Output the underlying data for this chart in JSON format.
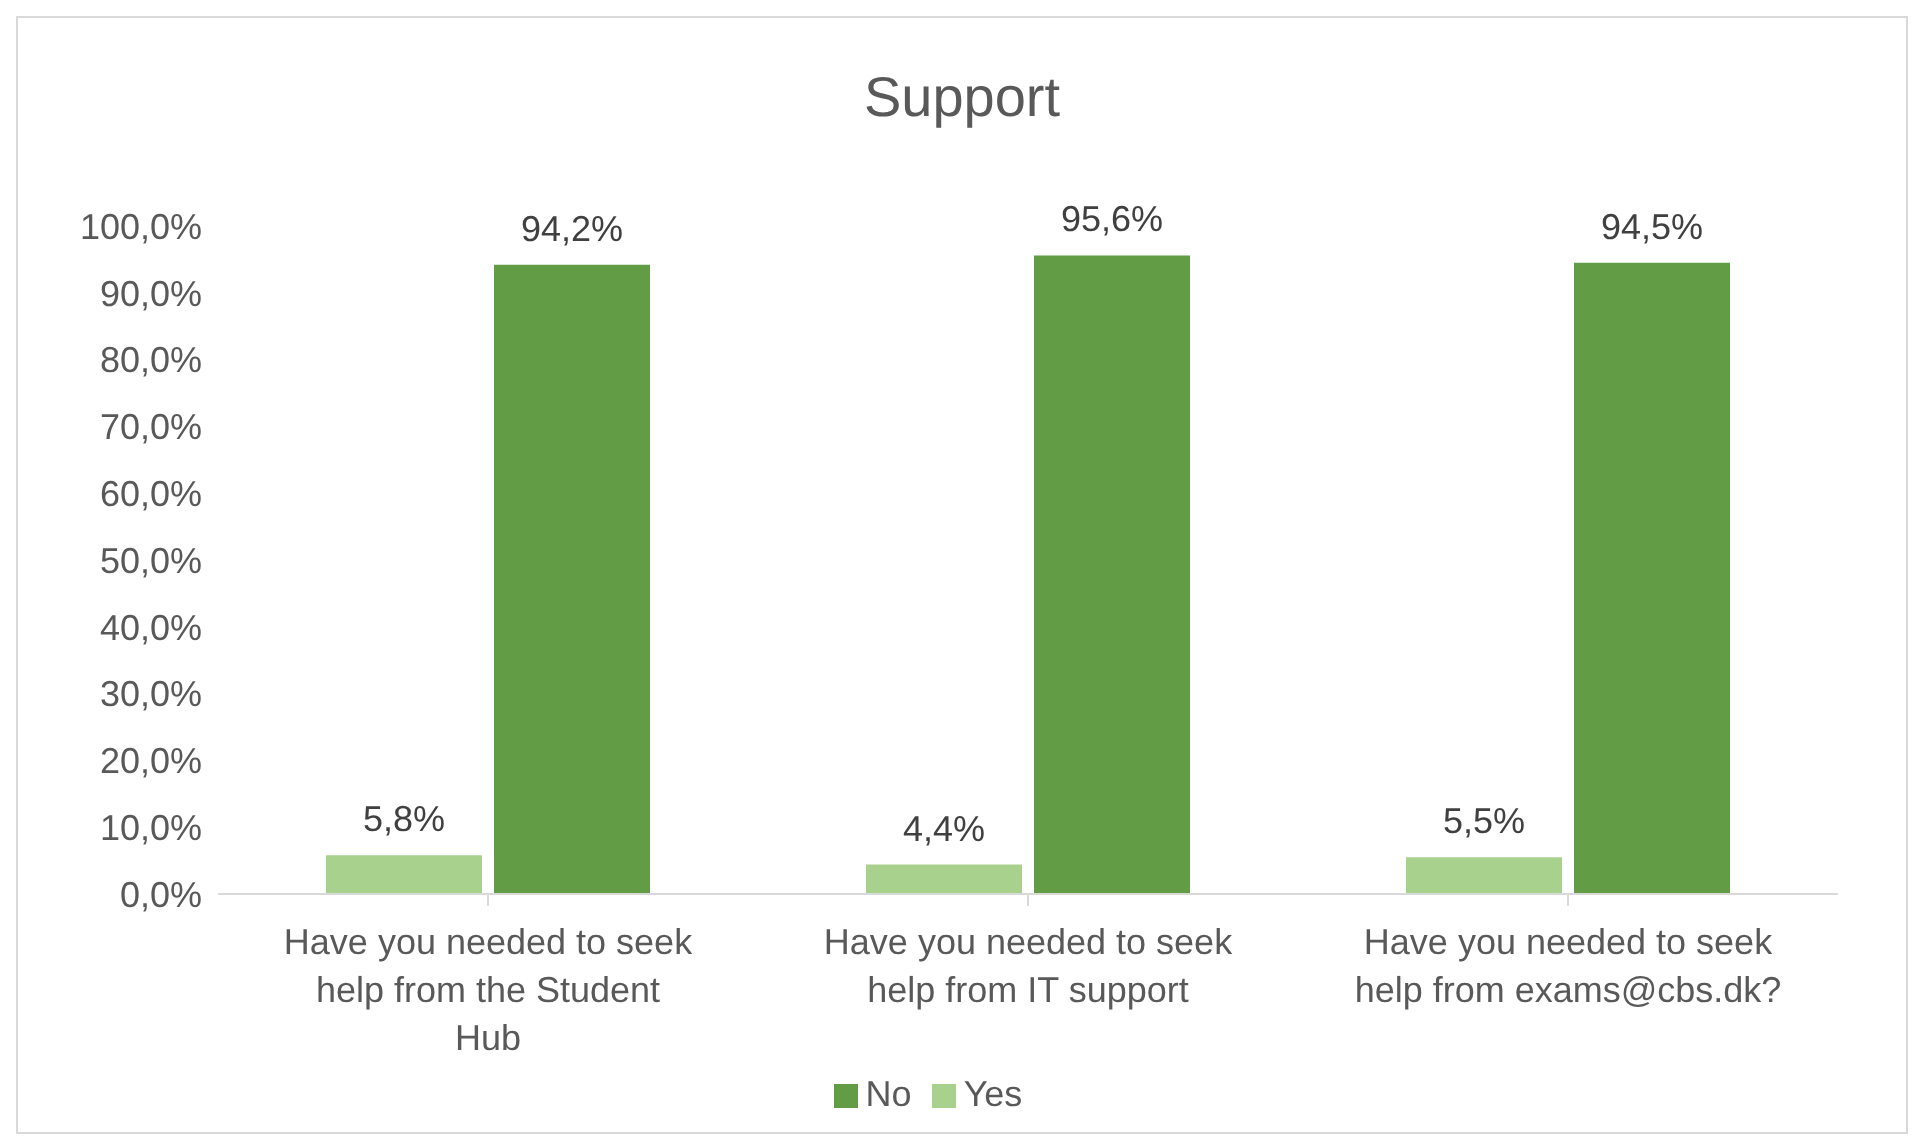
{
  "chart_data": {
    "type": "bar",
    "title": "Support",
    "categories": [
      "Have you needed to seek help from the Student Hub",
      "Have you needed to seek help from IT support",
      "Have you needed to seek help from exams@cbs.dk?"
    ],
    "series": [
      {
        "name": "Yes",
        "color": "#a9d18e",
        "values": [
          5.8,
          4.4,
          5.5
        ],
        "value_labels": [
          "5,8%",
          "4,4%",
          "5,5%"
        ]
      },
      {
        "name": "No",
        "color": "#629c44",
        "values": [
          94.2,
          95.6,
          94.5
        ],
        "value_labels": [
          "94,2%",
          "95,6%",
          "94,5%"
        ]
      }
    ],
    "ylim": [
      0,
      100
    ],
    "yticks": [
      {
        "value": 0,
        "label": "0,0%"
      },
      {
        "value": 10,
        "label": "10,0%"
      },
      {
        "value": 20,
        "label": "20,0%"
      },
      {
        "value": 30,
        "label": "30,0%"
      },
      {
        "value": 40,
        "label": "40,0%"
      },
      {
        "value": 50,
        "label": "50,0%"
      },
      {
        "value": 60,
        "label": "60,0%"
      },
      {
        "value": 70,
        "label": "70,0%"
      },
      {
        "value": 80,
        "label": "80,0%"
      },
      {
        "value": 90,
        "label": "90,0%"
      },
      {
        "value": 100,
        "label": "100,0%"
      }
    ],
    "grid": false,
    "legend": "bottom"
  }
}
